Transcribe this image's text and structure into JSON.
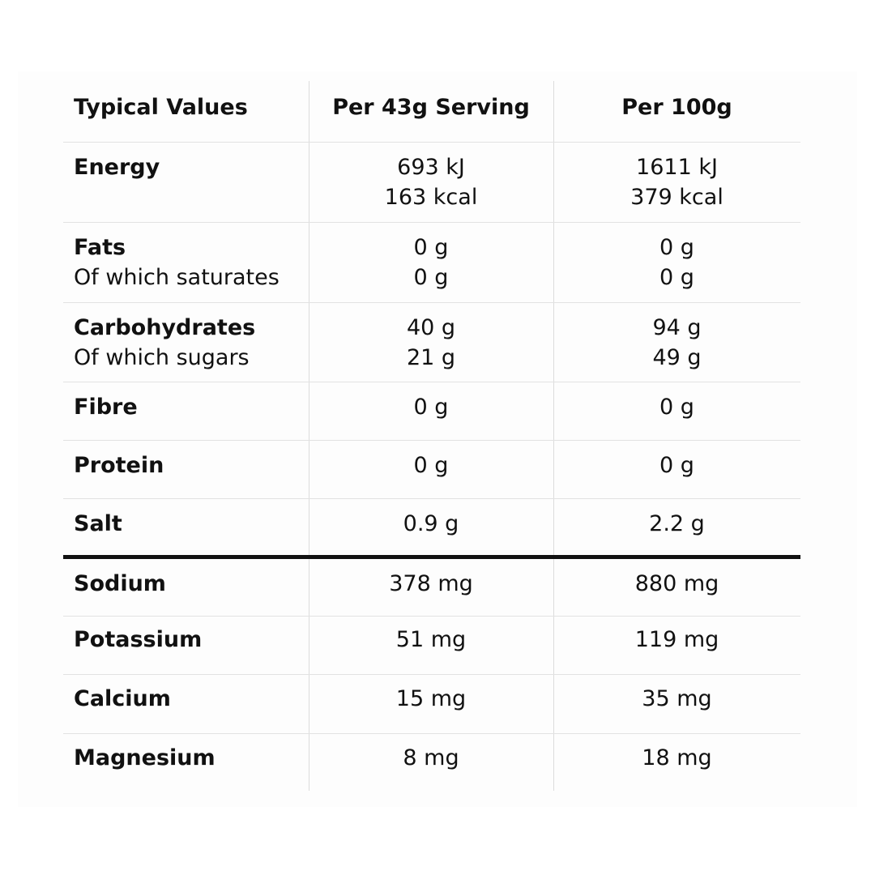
{
  "header": {
    "col1": "Typical Values",
    "col2": "Per 43g Serving",
    "col3": "Per 100g"
  },
  "rows": [
    {
      "label": "Energy",
      "sub": "",
      "serving": [
        "693 kJ",
        "163 kcal"
      ],
      "per100": [
        "1611 kJ",
        "379 kcal"
      ]
    },
    {
      "label": "Fats",
      "sub": "Of which saturates",
      "serving": [
        "0 g",
        "0 g"
      ],
      "per100": [
        "0 g",
        "0 g"
      ]
    },
    {
      "label": "Carbohydrates",
      "sub": "Of which sugars",
      "serving": [
        "40 g",
        "21 g"
      ],
      "per100": [
        "94 g",
        "49 g"
      ]
    },
    {
      "label": "Fibre",
      "serving": [
        "0 g"
      ],
      "per100": [
        "0 g"
      ]
    },
    {
      "label": "Protein",
      "serving": [
        "0 g"
      ],
      "per100": [
        "0 g"
      ]
    },
    {
      "label": "Salt",
      "serving": [
        "0.9 g"
      ],
      "per100": [
        "2.2 g"
      ]
    },
    {
      "label": "Sodium",
      "serving": [
        "378 mg"
      ],
      "per100": [
        "880 mg"
      ]
    },
    {
      "label": "Potassium",
      "serving": [
        "51 mg"
      ],
      "per100": [
        "119 mg"
      ]
    },
    {
      "label": "Calcium",
      "serving": [
        "15 mg"
      ],
      "per100": [
        "35 mg"
      ]
    },
    {
      "label": "Magnesium",
      "serving": [
        "8 mg"
      ],
      "per100": [
        "18 mg"
      ]
    }
  ]
}
